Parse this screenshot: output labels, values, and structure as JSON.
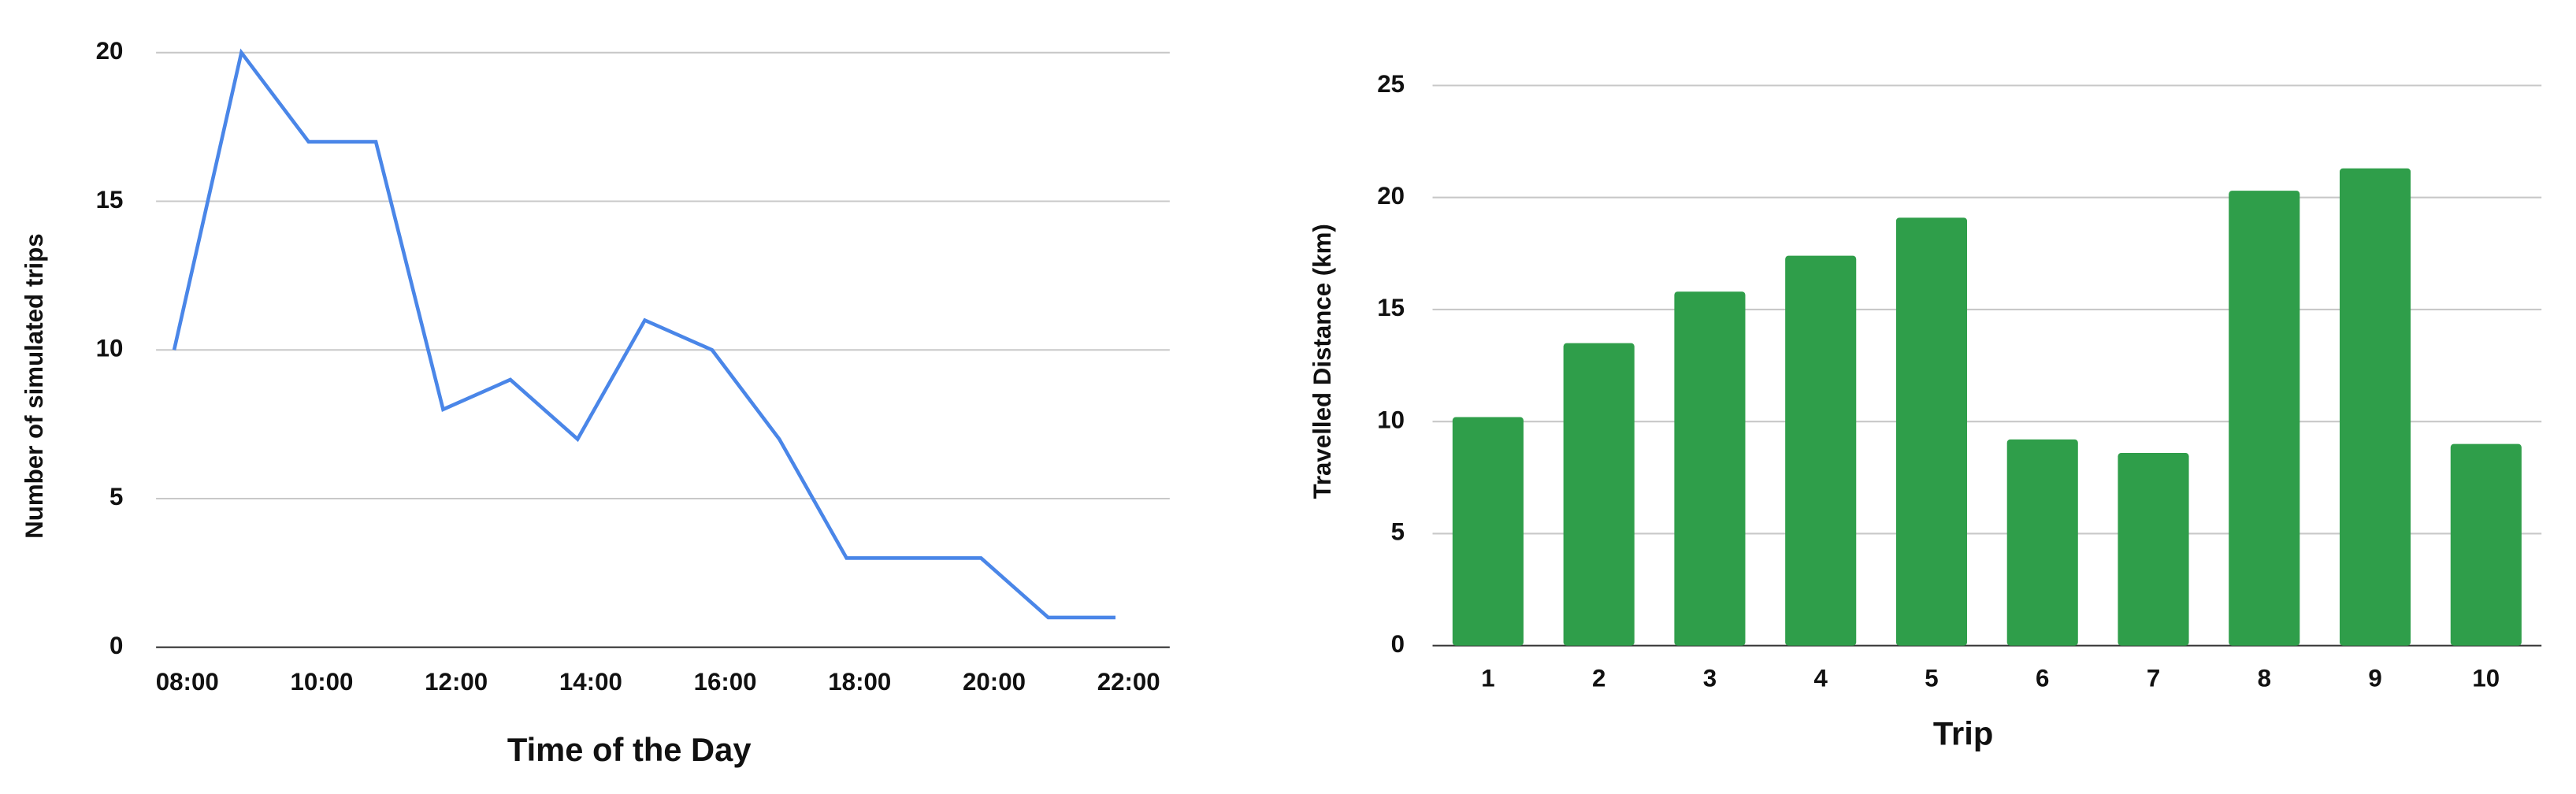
{
  "chart_data": [
    {
      "type": "line",
      "x_label": "Time of the Day",
      "y_label": "Number of simulated trips",
      "categories": [
        "08:00",
        null,
        "10:00",
        null,
        "12:00",
        null,
        "14:00",
        null,
        "16:00",
        null,
        "18:00",
        null,
        "20:00",
        null,
        "22:00"
      ],
      "series": [
        {
          "name": "Number of simulated trips",
          "color": "#4a86e8",
          "values": [
            10,
            20,
            17,
            17,
            8,
            9,
            7,
            11,
            10,
            7,
            3,
            3,
            3,
            1,
            1
          ]
        }
      ],
      "ylim": [
        0,
        20
      ],
      "yticks": [
        0,
        5,
        10,
        15,
        20
      ],
      "grid": true
    },
    {
      "type": "bar",
      "x_label": "Trip",
      "y_label": "Travelled Distance (km)",
      "categories": [
        "1",
        "2",
        "3",
        "4",
        "5",
        "6",
        "7",
        "8",
        "9",
        "10"
      ],
      "series": [
        {
          "name": "Travelled Distance (km)",
          "color": "#2f9e4a",
          "values": [
            10.2,
            13.5,
            15.8,
            17.4,
            19.1,
            9.2,
            8.6,
            20.3,
            21.3,
            9.0
          ]
        }
      ],
      "ylim": [
        0,
        25
      ],
      "yticks": [
        0,
        5,
        10,
        15,
        20,
        25
      ],
      "grid": true
    }
  ]
}
